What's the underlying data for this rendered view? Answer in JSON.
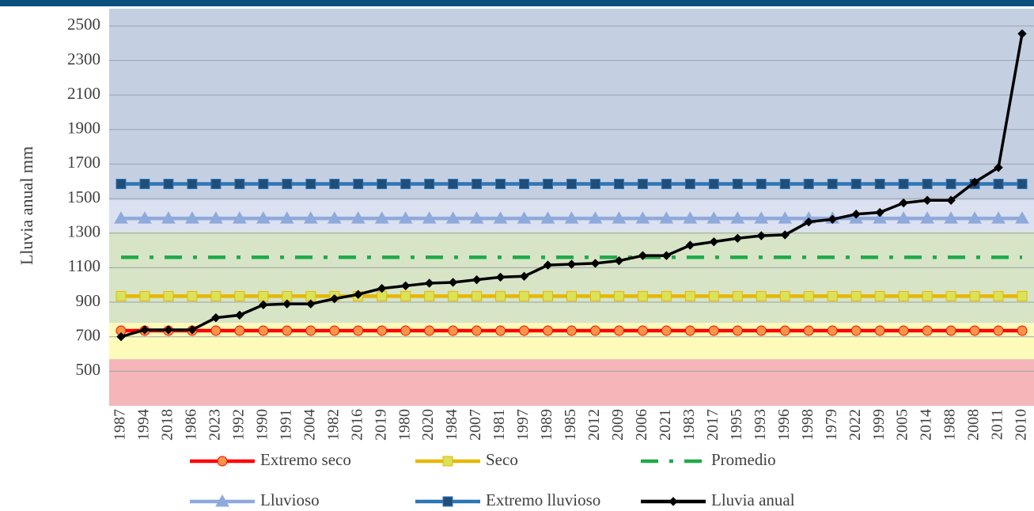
{
  "chart_data": {
    "type": "line",
    "y_label": "Lluvia anual mm",
    "categories": [
      "1987",
      "1994",
      "2018",
      "1986",
      "2023",
      "1992",
      "1990",
      "1991",
      "2004",
      "1982",
      "2016",
      "2019",
      "1980",
      "2020",
      "1984",
      "2007",
      "1981",
      "1997",
      "1989",
      "1985",
      "2012",
      "2009",
      "2006",
      "2021",
      "1983",
      "2017",
      "1995",
      "1993",
      "1996",
      "1998",
      "1979",
      "2022",
      "1999",
      "2005",
      "2014",
      "1988",
      "2008",
      "2011",
      "2010"
    ],
    "ylim": [
      300,
      2600
    ],
    "yticks": [
      500,
      700,
      900,
      1100,
      1300,
      1500,
      1700,
      1900,
      2100,
      2300,
      2500
    ],
    "grid": true,
    "bands": [
      {
        "from": 300,
        "to": 570,
        "color": "#f4b6b8"
      },
      {
        "from": 570,
        "to": 780,
        "color": "#fdfbb9"
      },
      {
        "from": 780,
        "to": 1310,
        "color": "#d7e4c6"
      },
      {
        "from": 1310,
        "to": 1490,
        "color": "#dbe1f0"
      },
      {
        "from": 1490,
        "to": 2600,
        "color": "#c4cfe2"
      }
    ],
    "series": [
      {
        "name": "Extremo seco",
        "color": "#ff0000",
        "marker": "circle",
        "marker_fill": "#f79646",
        "dash": "none",
        "values": [
          735,
          735,
          735,
          735,
          735,
          735,
          735,
          735,
          735,
          735,
          735,
          735,
          735,
          735,
          735,
          735,
          735,
          735,
          735,
          735,
          735,
          735,
          735,
          735,
          735,
          735,
          735,
          735,
          735,
          735,
          735,
          735,
          735,
          735,
          735,
          735,
          735,
          735,
          735
        ]
      },
      {
        "name": "Seco",
        "color": "#e6b800",
        "marker": "square",
        "marker_fill": "#d9e25a",
        "dash": "none",
        "values": [
          935,
          935,
          935,
          935,
          935,
          935,
          935,
          935,
          935,
          935,
          935,
          935,
          935,
          935,
          935,
          935,
          935,
          935,
          935,
          935,
          935,
          935,
          935,
          935,
          935,
          935,
          935,
          935,
          935,
          935,
          935,
          935,
          935,
          935,
          935,
          935,
          935,
          935,
          935
        ]
      },
      {
        "name": "Promedio",
        "color": "#1faa4a",
        "marker": "none",
        "marker_fill": "#1faa4a",
        "dash": "22 14 5 14",
        "values": [
          1160,
          1160,
          1160,
          1160,
          1160,
          1160,
          1160,
          1160,
          1160,
          1160,
          1160,
          1160,
          1160,
          1160,
          1160,
          1160,
          1160,
          1160,
          1160,
          1160,
          1160,
          1160,
          1160,
          1160,
          1160,
          1160,
          1160,
          1160,
          1160,
          1160,
          1160,
          1160,
          1160,
          1160,
          1160,
          1160,
          1160,
          1160,
          1160
        ]
      },
      {
        "name": "Lluvioso",
        "color": "#8eaadb",
        "marker": "triangle",
        "marker_fill": "#8eaadb",
        "dash": "none",
        "values": [
          1385,
          1385,
          1385,
          1385,
          1385,
          1385,
          1385,
          1385,
          1385,
          1385,
          1385,
          1385,
          1385,
          1385,
          1385,
          1385,
          1385,
          1385,
          1385,
          1385,
          1385,
          1385,
          1385,
          1385,
          1385,
          1385,
          1385,
          1385,
          1385,
          1385,
          1385,
          1385,
          1385,
          1385,
          1385,
          1385,
          1385,
          1385,
          1385
        ]
      },
      {
        "name": "Extremo lluvioso",
        "color": "#2e75b6",
        "marker": "square",
        "marker_fill": "#1f4e79",
        "dash": "none",
        "values": [
          1585,
          1585,
          1585,
          1585,
          1585,
          1585,
          1585,
          1585,
          1585,
          1585,
          1585,
          1585,
          1585,
          1585,
          1585,
          1585,
          1585,
          1585,
          1585,
          1585,
          1585,
          1585,
          1585,
          1585,
          1585,
          1585,
          1585,
          1585,
          1585,
          1585,
          1585,
          1585,
          1585,
          1585,
          1585,
          1585,
          1585,
          1585,
          1585
        ]
      },
      {
        "name": "Lluvia anual",
        "color": "#000000",
        "marker": "diamond",
        "marker_fill": "#000000",
        "dash": "none",
        "values": [
          700,
          740,
          740,
          740,
          810,
          825,
          885,
          890,
          890,
          920,
          945,
          980,
          995,
          1010,
          1015,
          1030,
          1045,
          1050,
          1115,
          1120,
          1125,
          1140,
          1170,
          1170,
          1230,
          1250,
          1270,
          1285,
          1290,
          1365,
          1380,
          1410,
          1420,
          1475,
          1490,
          1490,
          1595,
          1680,
          2455
        ]
      }
    ]
  }
}
